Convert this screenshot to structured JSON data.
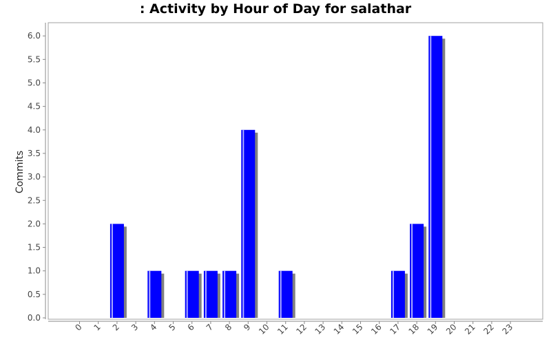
{
  "chart_data": {
    "type": "bar",
    "title": ": Activity by Hour of Day for salathar",
    "xlabel": "",
    "ylabel": "Commits",
    "categories": [
      "0",
      "1",
      "2",
      "3",
      "4",
      "5",
      "6",
      "7",
      "8",
      "9",
      "10",
      "11",
      "12",
      "13",
      "14",
      "15",
      "16",
      "17",
      "18",
      "19",
      "20",
      "21",
      "22",
      "23"
    ],
    "values": [
      0,
      0,
      2,
      0,
      1,
      0,
      1,
      1,
      1,
      4,
      0,
      1,
      0,
      0,
      0,
      0,
      0,
      1,
      2,
      6,
      0,
      0,
      0,
      0
    ],
    "ylim": [
      0,
      6.3
    ],
    "yticks": [
      "0.0",
      "0.5",
      "1.0",
      "1.5",
      "2.0",
      "2.5",
      "3.0",
      "3.5",
      "4.0",
      "4.5",
      "5.0",
      "5.5",
      "6.0"
    ],
    "grid": false,
    "legend": "none",
    "colors": {
      "bar": "#0000ff",
      "bar_highlight": "#b0b0ff",
      "bar_shadow": "#808080",
      "axis": "#888888",
      "plot_border": "#a0a0a0"
    }
  }
}
